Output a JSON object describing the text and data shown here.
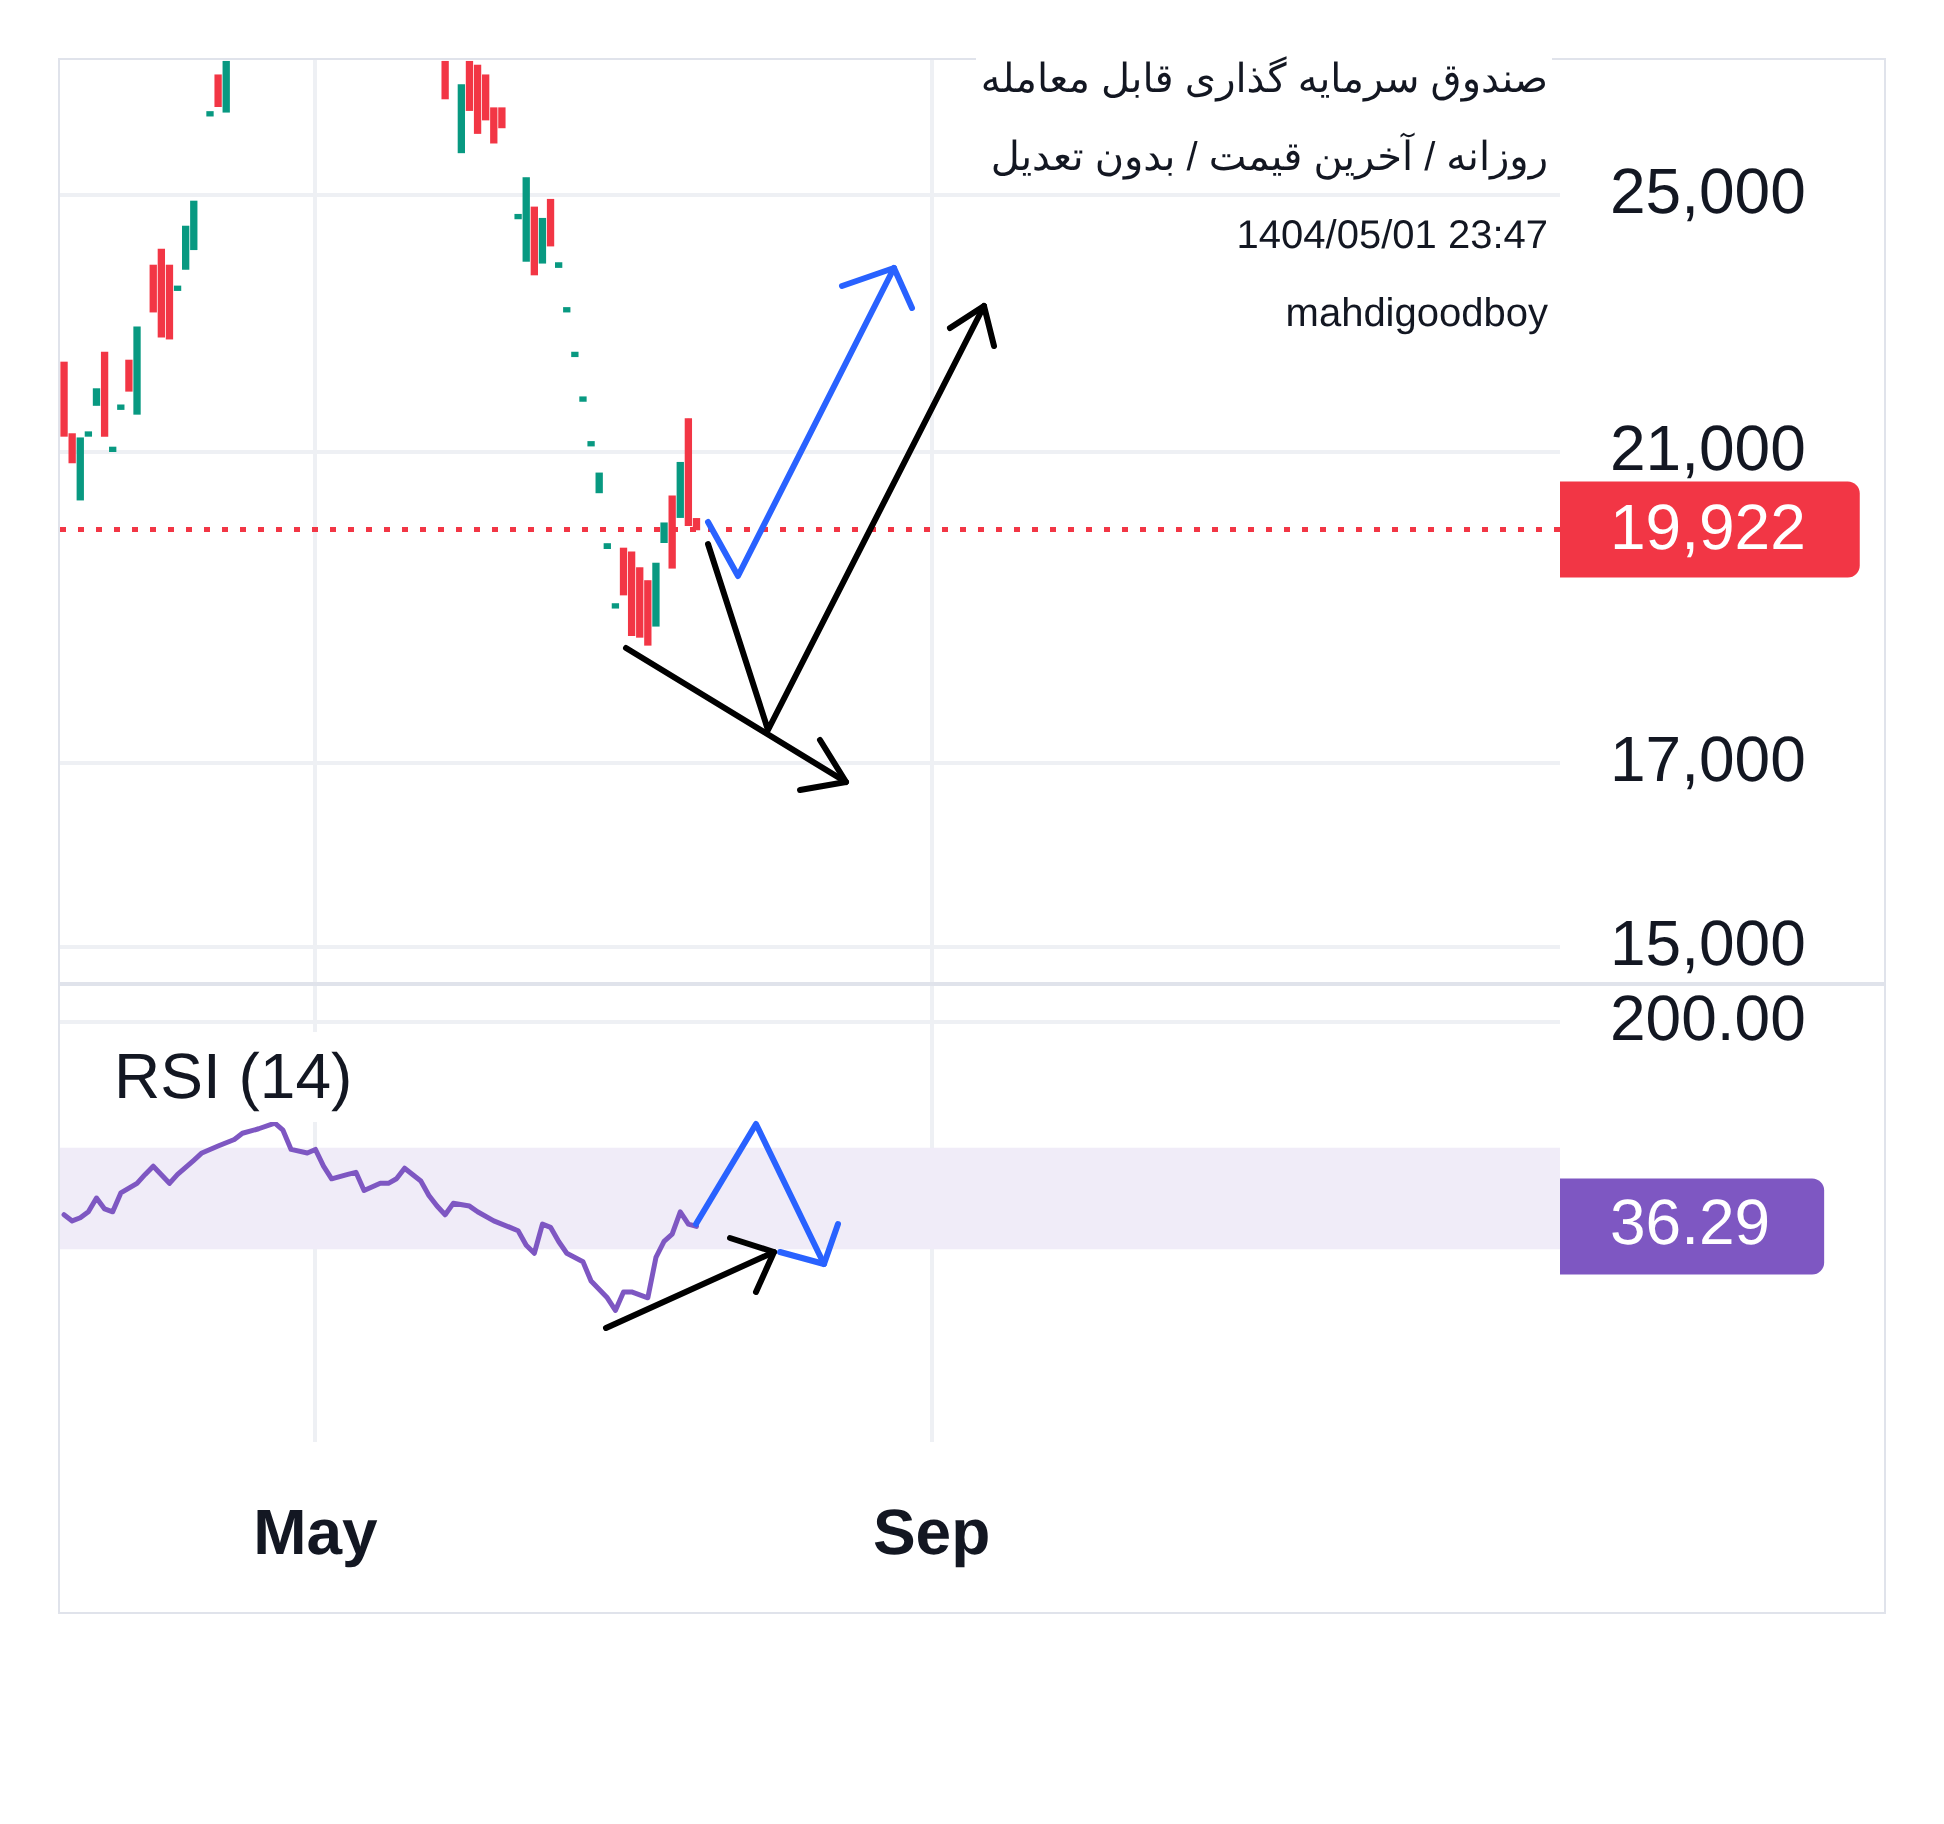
{
  "chart_data": [
    {
      "type": "candlestick",
      "title": "صندوق سرمایه گذاری قابل معامله",
      "subtitle": "روزانه / آخرین قیمت / بدون تعدیل",
      "annotations": [
        "1404/05/01 23:47",
        "mahdigoodboy"
      ],
      "categories": [
        null,
        null,
        null,
        null,
        null,
        null,
        null,
        null,
        null,
        null,
        null,
        null,
        null,
        null,
        null,
        null,
        null,
        null,
        null,
        null,
        null,
        null,
        null,
        null,
        null,
        null,
        null,
        null,
        null,
        null,
        null,
        null,
        null,
        null,
        null,
        null,
        null,
        null,
        null,
        null,
        null,
        null,
        null,
        null,
        null,
        null,
        null,
        null,
        null,
        null,
        null,
        null,
        null,
        null,
        null,
        null,
        null,
        null,
        null,
        null,
        null,
        null,
        null,
        null,
        null,
        null,
        null,
        null,
        null,
        null,
        null,
        null,
        null,
        null,
        null,
        null,
        null,
        null,
        null,
        null,
        null,
        null,
        null,
        null,
        null,
        null,
        null,
        null,
        null,
        null,
        null,
        null,
        null,
        null,
        null,
        null,
        null,
        null,
        null,
        null,
        null,
        null,
        null,
        null,
        null,
        null,
        null,
        null,
        null,
        null,
        null,
        null,
        null,
        null,
        null,
        null,
        null,
        null,
        null,
        null,
        null,
        null,
        null,
        null,
        null,
        null,
        null,
        null,
        null,
        null,
        null,
        null,
        null,
        null,
        null,
        null,
        null,
        null,
        null,
        null,
        null,
        null,
        null,
        null,
        null,
        null,
        null,
        null,
        null,
        null,
        null,
        null,
        null,
        null,
        null,
        null,
        null,
        null,
        null,
        null,
        null,
        null,
        null,
        null,
        null,
        null,
        null,
        null,
        null,
        null,
        null,
        null,
        null,
        null,
        null,
        null,
        null,
        null,
        null,
        null,
        null,
        null,
        null,
        null,
        null
      ],
      "ohlc": [
        [
          22320,
          22320,
          21230,
          21230
        ],
        [
          21260,
          21260,
          20850,
          20850
        ],
        [
          20330,
          21200,
          20330,
          21200
        ],
        [
          21230,
          21280,
          21230,
          21280
        ],
        [
          21680,
          21920,
          21680,
          21920
        ],
        [
          22470,
          22470,
          21230,
          21230
        ],
        [
          21010,
          21060,
          21010,
          21060
        ],
        [
          21620,
          21680,
          21620,
          21680
        ],
        [
          22350,
          22350,
          21890,
          21890
        ],
        [
          21550,
          22860,
          21550,
          22860
        ],
        null,
        [
          23840,
          23840,
          23100,
          23100
        ],
        [
          24100,
          24100,
          22710,
          22710
        ],
        [
          23840,
          23840,
          22680,
          22680
        ],
        [
          23440,
          23500,
          23440,
          23500
        ],
        [
          23780,
          24480,
          23780,
          24480
        ],
        [
          24100,
          24900,
          24100,
          24900
        ],
        null,
        [
          26390,
          26460,
          26390,
          26460
        ],
        [
          27130,
          27130,
          26560,
          26560
        ],
        [
          26460,
          27380,
          26460,
          27380
        ],
        null,
        null,
        null,
        null,
        null,
        null,
        null,
        null,
        null,
        null,
        null,
        null,
        null,
        null,
        null,
        null,
        null,
        null,
        null,
        null,
        null,
        null,
        null,
        null,
        null,
        null,
        [
          27380,
          27380,
          26700,
          26700
        ],
        null,
        [
          25740,
          26950,
          25740,
          26950
        ],
        [
          27380,
          27380,
          26490,
          26490
        ],
        [
          27310,
          27310,
          26080,
          26080
        ],
        [
          27130,
          27130,
          26320,
          26320
        ],
        [
          26530,
          26530,
          25910,
          25910
        ],
        [
          26530,
          26530,
          26180,
          26180
        ],
        null,
        [
          24610,
          24670,
          24610,
          24670
        ],
        [
          23910,
          25300,
          23910,
          25300
        ],
        [
          24800,
          24800,
          23690,
          23690
        ],
        [
          23880,
          24610,
          23880,
          24610
        ],
        [
          24930,
          24930,
          24160,
          24160
        ],
        [
          23810,
          23880,
          23810,
          23880
        ],
        [
          23100,
          23160,
          23100,
          23160
        ],
        [
          22410,
          22470,
          22410,
          22470
        ],
        [
          21740,
          21790,
          21740,
          21790
        ],
        [
          21090,
          21140,
          21090,
          21140
        ],
        [
          20430,
          20700,
          20430,
          20700
        ],
        [
          19670,
          19730,
          19670,
          19730
        ],
        [
          18890,
          18930,
          18890,
          18930
        ],
        [
          19670,
          19670,
          19060,
          19060
        ],
        [
          19620,
          19620,
          18540,
          18540
        ],
        [
          19410,
          19410,
          18520,
          18520
        ],
        [
          19240,
          19240,
          18420,
          18420
        ],
        [
          18660,
          19470,
          18660,
          19470
        ],
        [
          19750,
          20010,
          19750,
          20010
        ],
        [
          20380,
          20380,
          19410,
          19410
        ],
        [
          20090,
          20850,
          20090,
          20850
        ],
        [
          21480,
          21480,
          19980,
          19980
        ],
        [
          20070,
          20070,
          19922,
          19922
        ],
        null,
        null,
        null,
        null,
        null,
        null,
        null,
        null,
        null,
        null,
        null,
        null,
        null,
        null,
        null,
        null,
        null,
        null,
        null,
        null,
        null,
        null,
        null,
        null,
        null,
        null,
        null,
        null,
        null,
        null,
        null,
        null,
        null,
        null,
        null,
        null,
        null,
        null,
        null,
        null,
        null,
        null,
        null,
        null,
        null,
        null,
        null,
        null,
        null,
        null,
        null,
        null,
        null,
        null,
        null,
        null,
        null,
        null,
        null,
        null,
        null,
        null,
        null,
        null,
        null,
        null,
        null,
        null,
        null,
        null,
        null,
        null,
        null,
        null,
        null,
        null,
        null,
        null,
        null,
        null,
        null,
        null,
        null,
        null,
        null,
        null,
        null,
        null,
        null,
        null,
        null,
        null,
        null,
        null,
        null,
        null,
        null,
        null,
        null,
        null,
        null,
        null,
        null,
        null,
        null,
        null
      ],
      "colors": [
        "#f23645",
        "#f23645",
        "#089981",
        "#089981",
        "#089981",
        "#f23645",
        "#089981",
        "#089981",
        "#f23645",
        "#089981",
        null,
        "#f23645",
        "#f23645",
        "#f23645",
        "#089981",
        "#089981",
        "#089981",
        null,
        "#089981",
        "#f23645",
        "#089981",
        null,
        null,
        null,
        null,
        null,
        null,
        null,
        null,
        null,
        null,
        null,
        null,
        null,
        null,
        null,
        null,
        null,
        null,
        null,
        null,
        null,
        null,
        null,
        null,
        null,
        null,
        "#f23645",
        null,
        "#089981",
        "#f23645",
        "#f23645",
        "#f23645",
        "#f23645",
        "#f23645",
        null,
        "#089981",
        "#089981",
        "#f23645",
        "#089981",
        "#f23645",
        "#089981",
        "#089981",
        "#089981",
        "#089981",
        "#089981",
        "#089981",
        "#089981",
        "#089981",
        "#f23645",
        "#f23645",
        "#f23645",
        "#f23645",
        "#089981",
        "#089981",
        "#f23645",
        "#089981",
        "#f23645",
        "#f23645",
        null,
        null,
        null,
        null,
        null,
        null,
        null,
        null,
        null,
        null,
        null,
        null,
        null,
        null,
        null,
        null,
        null,
        null,
        null,
        null,
        null,
        null,
        null,
        null,
        null,
        null,
        null,
        null,
        null,
        null,
        null,
        null,
        null,
        null,
        null,
        null,
        null,
        null,
        null,
        null,
        null,
        null,
        null,
        null,
        null,
        null,
        null,
        null,
        null,
        null,
        null,
        null,
        null,
        null,
        null,
        null,
        null,
        null,
        null,
        null,
        null,
        null,
        null,
        null,
        null,
        null,
        null,
        null,
        null,
        null,
        null,
        null,
        null,
        null,
        null,
        null,
        null,
        null,
        null,
        null,
        null,
        null,
        null,
        null,
        null,
        null,
        null,
        null,
        null,
        null,
        null,
        null,
        null,
        null,
        null,
        null,
        null,
        null,
        null,
        null,
        null,
        null,
        null,
        null,
        null,
        null
      ],
      "ylim": [
        14650,
        27410
      ],
      "yticks": [
        {
          "value": 15000,
          "label": "15,000"
        },
        {
          "value": 17000,
          "label": "17,000"
        },
        {
          "value": 21000,
          "label": "21,000"
        },
        {
          "value": 25000,
          "label": "25,000"
        }
      ],
      "log": true,
      "grid": true,
      "ref_lines": [
        {
          "axis": "y",
          "value": 19922,
          "label": "19,922",
          "color": "#f23645",
          "line_style": "dotted"
        }
      ]
    },
    {
      "type": "line",
      "title": "RSI (14)",
      "categories": [
        null,
        null,
        null,
        null,
        null,
        null,
        null,
        null,
        null,
        null,
        null,
        null,
        null,
        null,
        null,
        null,
        null,
        null,
        null,
        null,
        null,
        null,
        null,
        null,
        null,
        null,
        null,
        null,
        null,
        null,
        null,
        "May",
        null,
        null,
        null,
        null,
        null,
        null,
        null,
        null,
        null,
        null,
        null,
        null,
        null,
        null,
        null,
        null,
        null,
        null,
        null,
        null,
        null,
        null,
        null,
        null,
        null,
        null,
        null,
        null,
        null,
        null,
        null,
        null,
        null,
        null,
        null,
        null,
        null,
        null,
        null,
        null,
        null,
        null,
        null,
        null,
        null,
        null,
        null,
        null,
        null,
        null,
        null,
        null,
        null,
        null,
        null,
        null,
        null,
        null,
        null,
        null,
        null,
        null,
        null,
        null,
        null,
        null,
        null,
        null,
        null,
        null,
        null,
        null,
        null,
        null,
        null,
        "Sep",
        null,
        null,
        null,
        null,
        null,
        null,
        null,
        null,
        null,
        null,
        null,
        null,
        null,
        null,
        null,
        null,
        null,
        null,
        null,
        null,
        null,
        null,
        null,
        null,
        null,
        null,
        null,
        null,
        null,
        null,
        null,
        null,
        null,
        null,
        null,
        null,
        null,
        null,
        null,
        null,
        null,
        null,
        null,
        null,
        null,
        null,
        null,
        null,
        null,
        null,
        null,
        null,
        null,
        null,
        null,
        null,
        null,
        null,
        null,
        null,
        null,
        null,
        null,
        null,
        null,
        null,
        null,
        null,
        null,
        null,
        null,
        null,
        null,
        null,
        null,
        null,
        null
      ],
      "series": [
        {
          "color": "#7e57c2",
          "values": [
            40,
            38,
            39,
            41,
            46,
            42,
            41,
            48,
            null,
            52,
            56,
            60,
            null,
            52,
            56,
            null,
            63,
            67,
            null,
            71,
            null,
            75,
            79,
            null,
            82,
            null,
            86,
            81,
            69,
            null,
            67,
            69,
            60,
            54,
            null,
            56,
            57,
            49,
            null,
            52,
            52,
            54,
            59,
            null,
            53,
            47,
            43,
            40,
            44,
            null,
            43,
            41,
            null,
            38,
            null,
            36,
            35,
            31,
            29,
            37,
            36,
            32,
            29,
            null,
            27,
            23,
            null,
            20,
            18,
            21,
            21,
            null,
            20,
            28,
            32,
            34,
            41,
            37,
            36.29,
            null,
            null,
            null,
            null,
            null,
            null,
            null,
            null,
            null,
            null,
            null,
            null,
            null,
            null,
            null,
            null,
            null,
            null,
            null,
            null,
            null,
            null,
            null,
            null,
            null,
            null,
            null,
            null,
            null,
            null,
            null,
            null,
            null,
            null,
            null,
            null,
            null,
            null,
            null,
            null,
            null,
            null,
            null,
            null,
            null,
            null,
            null,
            null,
            null,
            null,
            null,
            null,
            null,
            null,
            null,
            null,
            null,
            null,
            null,
            null,
            null,
            null,
            null,
            null,
            null,
            null,
            null,
            null,
            null,
            null,
            null,
            null,
            null,
            null,
            null,
            null,
            null,
            null,
            null,
            null,
            null,
            null,
            null,
            null,
            null,
            null,
            null,
            null,
            null,
            null,
            null,
            null,
            null,
            null,
            null,
            null,
            null,
            null,
            null,
            null,
            null,
            null,
            null,
            null,
            null,
            null
          ]
        }
      ],
      "ylim": [
        6,
        270
      ],
      "yticks": [
        {
          "value": 36.29,
          "label": "36.29"
        },
        {
          "value": 200,
          "label": "200.00"
        }
      ],
      "log": true,
      "grid": true,
      "bands": [
        {
          "axis": "y",
          "from": 30,
          "to": 70,
          "color": "#f0ecf8"
        }
      ]
    }
  ]
}
